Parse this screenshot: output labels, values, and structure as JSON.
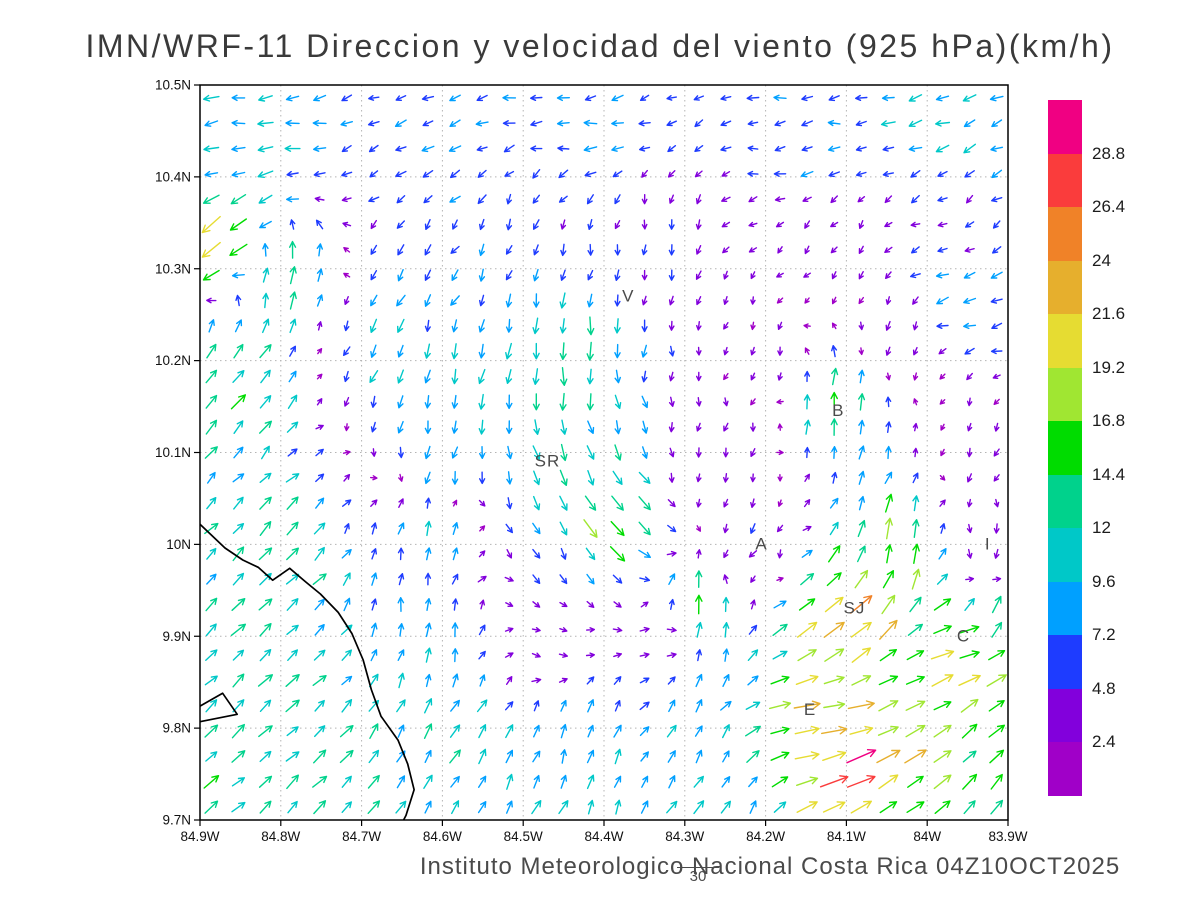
{
  "title": "IMN/WRF-11 Direccion y velocidad del viento (925 hPa)(km/h)",
  "footer": "Instituto Meteorologico Nacional Costa Rica 04Z10OCT2025",
  "frame_number": "30",
  "axes": {
    "y_ticks": [
      {
        "label": "10.5N",
        "lat": 10.5
      },
      {
        "label": "10.4N",
        "lat": 10.4
      },
      {
        "label": "10.3N",
        "lat": 10.3
      },
      {
        "label": "10.2N",
        "lat": 10.2
      },
      {
        "label": "10.1N",
        "lat": 10.1
      },
      {
        "label": "10N",
        "lat": 10.0
      },
      {
        "label": "9.9N",
        "lat": 9.9
      },
      {
        "label": "9.8N",
        "lat": 9.8
      },
      {
        "label": "9.7N",
        "lat": 9.7
      }
    ],
    "x_ticks": [
      {
        "label": "84.9W",
        "lon": 84.9
      },
      {
        "label": "84.8W",
        "lon": 84.8
      },
      {
        "label": "84.7W",
        "lon": 84.7
      },
      {
        "label": "84.6W",
        "lon": 84.6
      },
      {
        "label": "84.5W",
        "lon": 84.5
      },
      {
        "label": "84.4W",
        "lon": 84.4
      },
      {
        "label": "84.3W",
        "lon": 84.3
      },
      {
        "label": "84.2W",
        "lon": 84.2
      },
      {
        "label": "84.1W",
        "lon": 84.1
      },
      {
        "label": "84W",
        "lon": 84.0
      },
      {
        "label": "83.9W",
        "lon": 83.9
      }
    ]
  },
  "colorbar": {
    "labels": [
      "28.8",
      "26.4",
      "24",
      "21.6",
      "19.2",
      "16.8",
      "14.4",
      "12",
      "9.6",
      "7.2",
      "4.8",
      "2.4"
    ]
  },
  "map": {
    "cities": [
      {
        "label": "V",
        "lon": 84.37,
        "lat": 10.27
      },
      {
        "label": "B",
        "lon": 84.11,
        "lat": 10.145
      },
      {
        "label": "SR",
        "lon": 84.47,
        "lat": 10.09
      },
      {
        "label": "A",
        "lon": 84.205,
        "lat": 10.0
      },
      {
        "label": "SJ",
        "lon": 84.09,
        "lat": 9.93
      },
      {
        "label": "C",
        "lon": 83.955,
        "lat": 9.9
      },
      {
        "label": "E",
        "lon": 84.145,
        "lat": 9.82
      },
      {
        "label": "I",
        "lon": 83.925,
        "lat": 10.0
      }
    ],
    "coastline": [
      [
        [
          84.9,
          10.022
        ],
        [
          84.869,
          9.996
        ],
        [
          84.847,
          9.983
        ],
        [
          84.828,
          9.975
        ],
        [
          84.81,
          9.961
        ],
        [
          84.789,
          9.974
        ],
        [
          84.769,
          9.959
        ],
        [
          84.751,
          9.946
        ],
        [
          84.729,
          9.926
        ],
        [
          84.712,
          9.903
        ],
        [
          84.698,
          9.874
        ],
        [
          84.688,
          9.842
        ],
        [
          84.676,
          9.813
        ],
        [
          84.655,
          9.787
        ],
        [
          84.643,
          9.761
        ],
        [
          84.635,
          9.733
        ],
        [
          84.645,
          9.705
        ],
        [
          84.648,
          9.7
        ]
      ],
      [
        [
          84.9,
          9.824
        ],
        [
          84.872,
          9.838
        ],
        [
          84.854,
          9.815
        ],
        [
          84.9,
          9.807
        ]
      ]
    ]
  },
  "chart_data": {
    "type": "vector_field",
    "model": "IMN/WRF-11",
    "variable": "Direccion y velocidad del viento",
    "pressure_level": "925 hPa",
    "units": "km/h",
    "lon_range_w": [
      84.9,
      83.9
    ],
    "lat_range_n": [
      9.7,
      10.5
    ],
    "grid_on": true,
    "legend_position": "right-colorbar",
    "speed_levels_kmh": [
      2.4,
      4.8,
      7.2,
      9.6,
      12,
      14.4,
      16.8,
      19.2,
      21.6,
      24,
      26.4,
      28.8
    ],
    "speed_colors_low_to_high": [
      "#A000C8",
      "#8200DC",
      "#1E3CFF",
      "#00A0FF",
      "#00C8C8",
      "#00D28C",
      "#00DC00",
      "#A0E632",
      "#E6DC32",
      "#E6AF2D",
      "#F08228",
      "#FA3C3C",
      "#F00082"
    ],
    "vector_grid": {
      "cols": 30,
      "rows": 29
    },
    "flow_controls_format": "[lon_w, lat_n, direction_toward_deg_ccw_from_east, speed_kmh]",
    "flow_controls": [
      [
        84.85,
        10.47,
        185,
        10
      ],
      [
        84.45,
        10.47,
        186,
        8
      ],
      [
        84.0,
        10.47,
        197,
        9
      ],
      [
        83.92,
        10.44,
        205,
        9
      ],
      [
        84.88,
        10.42,
        195,
        10
      ],
      [
        84.6,
        10.42,
        205,
        7
      ],
      [
        84.15,
        10.43,
        187,
        7
      ],
      [
        84.87,
        10.34,
        218,
        19
      ],
      [
        84.8,
        10.29,
        80,
        13
      ],
      [
        84.62,
        10.31,
        235,
        7
      ],
      [
        84.5,
        10.33,
        245,
        6
      ],
      [
        84.35,
        10.3,
        262,
        5
      ],
      [
        84.1,
        10.33,
        230,
        3
      ],
      [
        83.95,
        10.36,
        212,
        5
      ],
      [
        83.96,
        10.27,
        196,
        8
      ],
      [
        84.85,
        10.18,
        50,
        14
      ],
      [
        84.67,
        10.22,
        250,
        9
      ],
      [
        84.55,
        10.18,
        256,
        11
      ],
      [
        84.44,
        10.21,
        270,
        13
      ],
      [
        84.2,
        10.2,
        250,
        3
      ],
      [
        84.05,
        10.22,
        268,
        4
      ],
      [
        84.6,
        10.1,
        258,
        9
      ],
      [
        84.45,
        10.07,
        288,
        12
      ],
      [
        84.4,
        10.02,
        310,
        17
      ],
      [
        84.25,
        10.1,
        262,
        4
      ],
      [
        84.11,
        10.16,
        85,
        13
      ],
      [
        83.93,
        10.09,
        250,
        4
      ],
      [
        84.82,
        10.0,
        45,
        12
      ],
      [
        84.62,
        10.01,
        75,
        9
      ],
      [
        84.45,
        9.98,
        300,
        7
      ],
      [
        84.22,
        10.0,
        240,
        5
      ],
      [
        84.03,
        9.99,
        85,
        16
      ],
      [
        83.93,
        9.99,
        268,
        5
      ],
      [
        84.8,
        9.9,
        45,
        12
      ],
      [
        84.62,
        9.92,
        80,
        9
      ],
      [
        84.45,
        9.9,
        350,
        3
      ],
      [
        84.33,
        9.9,
        0,
        4
      ],
      [
        84.28,
        9.93,
        88,
        13
      ],
      [
        84.1,
        9.91,
        35,
        23
      ],
      [
        84.05,
        9.95,
        55,
        20
      ],
      [
        83.95,
        9.89,
        15,
        20
      ],
      [
        83.92,
        9.92,
        60,
        14
      ],
      [
        84.82,
        9.79,
        42,
        12
      ],
      [
        84.6,
        9.78,
        60,
        11
      ],
      [
        84.42,
        9.78,
        75,
        10
      ],
      [
        84.3,
        9.8,
        55,
        9
      ],
      [
        84.12,
        9.81,
        8,
        22
      ],
      [
        84.08,
        9.76,
        20,
        28
      ],
      [
        84.0,
        9.84,
        25,
        18
      ],
      [
        83.95,
        9.8,
        40,
        16
      ],
      [
        84.88,
        9.72,
        40,
        13
      ],
      [
        84.7,
        9.72,
        45,
        12
      ],
      [
        84.5,
        9.72,
        65,
        10
      ],
      [
        84.25,
        9.72,
        60,
        10
      ],
      [
        84.05,
        9.73,
        35,
        17
      ],
      [
        83.93,
        9.72,
        50,
        14
      ]
    ]
  }
}
